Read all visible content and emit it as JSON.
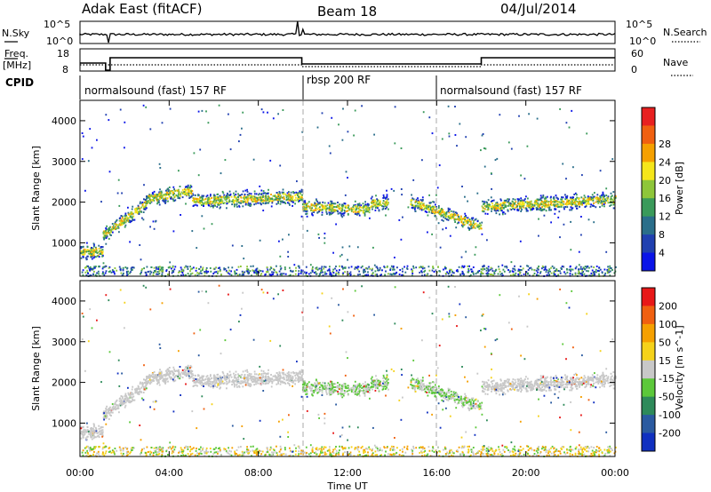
{
  "header": {
    "station": "Adak East (fitACF)",
    "beam": "Beam 18",
    "date": "04/Jul/2014"
  },
  "panels": {
    "nsky": {
      "label": "N.Sky",
      "ticks": [
        "10^5",
        "10^0"
      ],
      "right_label": "N.Search",
      "right_ticks": [
        "10^5",
        "10^0"
      ]
    },
    "freq": {
      "label": "Freq.",
      "unit": "[MHz]",
      "ticks": [
        "18",
        "8"
      ],
      "right_label": "Nave",
      "right_ticks": [
        "60",
        "0"
      ]
    },
    "cpid": {
      "label": "CPID",
      "modes": [
        "normalsound (fast) 157 RF",
        "rbsp 200 RF",
        "normalsound (fast) 157 RF"
      ]
    }
  },
  "chart_data": [
    {
      "type": "heatmap",
      "title": "",
      "xlabel": "",
      "ylabel": "Slant Range [km]",
      "x_ticks": [
        "00:00",
        "04:00",
        "08:00",
        "12:00",
        "16:00",
        "20:00",
        "00:00"
      ],
      "y_ticks": [
        "1000",
        "2000",
        "3000",
        "4000"
      ],
      "xlim_hours": [
        0,
        24
      ],
      "ylim": [
        180,
        4500
      ],
      "colorbar": {
        "label": "Power [dB]",
        "ticks": [
          "4",
          "8",
          "12",
          "16",
          "20",
          "24",
          "28"
        ],
        "colors": [
          "#0a14e8",
          "#2040b0",
          "#2a6e8a",
          "#3a9a5a",
          "#8ec63a",
          "#f5e61a",
          "#f5a000",
          "#f06010",
          "#e82020"
        ]
      },
      "mode_boundaries_hours": [
        9.95,
        16
      ]
    },
    {
      "type": "heatmap",
      "title": "",
      "xlabel": "Time UT",
      "ylabel": "Slant Range [km]",
      "x_ticks": [
        "00:00",
        "04:00",
        "08:00",
        "12:00",
        "16:00",
        "20:00",
        "00:00"
      ],
      "y_ticks": [
        "1000",
        "2000",
        "3000",
        "4000"
      ],
      "xlim_hours": [
        0,
        24
      ],
      "ylim": [
        180,
        4500
      ],
      "colorbar": {
        "label": "Velocity [m s^-1]",
        "ticks": [
          "200",
          "100",
          "50",
          "15",
          "-15",
          "-50",
          "-100",
          "-200"
        ],
        "colors": [
          "#1030c0",
          "#2a5aa0",
          "#2e8a5a",
          "#5cc83a",
          "#c8c8c8",
          "#f5d21a",
          "#f5a000",
          "#f06010",
          "#e81818"
        ]
      },
      "mode_boundaries_hours": [
        9.95,
        16
      ]
    }
  ]
}
